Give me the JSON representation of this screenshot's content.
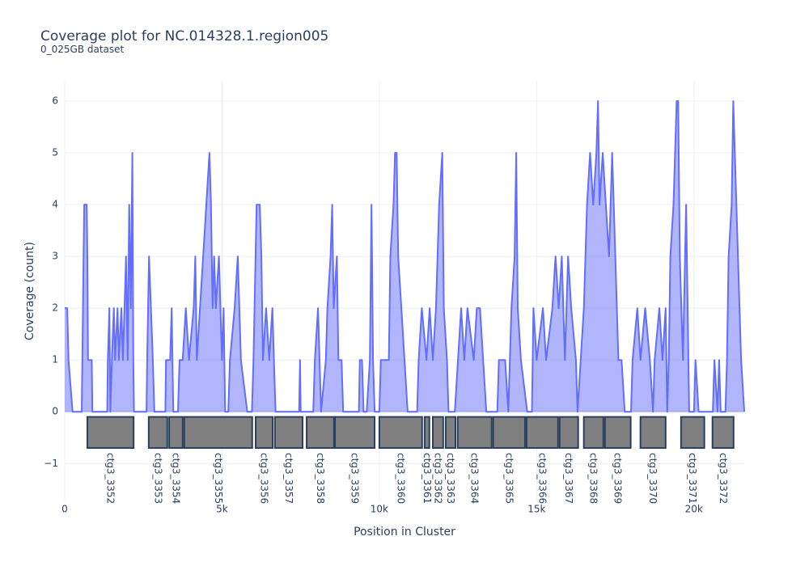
{
  "chart_data": {
    "type": "line",
    "title": "Coverage plot for NC.014328.1.region005",
    "subtitle": "0_025GB dataset",
    "x_label": "Position in Cluster",
    "y_label": "Coverage (count)",
    "xlim": [
      0,
      21600
    ],
    "ylim": [
      -1.73,
      6.39
    ],
    "xticks": [
      0,
      {
        "value": 5000,
        "label": "5k"
      },
      {
        "value": 10000,
        "label": "10k"
      },
      {
        "value": 15000,
        "label": "15k"
      },
      {
        "value": 20000,
        "label": "20k"
      }
    ],
    "yticks": [
      {
        "value": -1,
        "label": "−1"
      },
      0,
      1,
      2,
      3,
      4,
      5,
      6
    ],
    "grid": true,
    "coverage": {
      "color": "#636efa",
      "x": [
        0,
        80,
        120,
        250,
        540,
        560,
        600,
        620,
        700,
        720,
        740,
        860,
        880,
        1350,
        1370,
        1420,
        1450,
        1500,
        1560,
        1600,
        1680,
        1720,
        1800,
        1850,
        1900,
        1950,
        2000,
        2050,
        2100,
        2150,
        2180,
        2200,
        2600,
        2620,
        2680,
        2740,
        2800,
        2850,
        3200,
        3220,
        3350,
        3400,
        3450,
        3600,
        3650,
        3750,
        3850,
        3950,
        4100,
        4150,
        4200,
        4300,
        4400,
        4500,
        4600,
        4650,
        4700,
        4750,
        4800,
        4900,
        5000,
        5050,
        5100,
        5200,
        5250,
        5400,
        5500,
        5600,
        5800,
        5950,
        6000,
        6100,
        6200,
        6250,
        6300,
        6400,
        6500,
        6600,
        6650,
        6700,
        7450,
        7480,
        7500,
        7900,
        7950,
        8050,
        8100,
        8150,
        8300,
        8350,
        8450,
        8500,
        8550,
        8650,
        8700,
        8800,
        8850,
        9350,
        9380,
        9450,
        9500,
        9600,
        9700,
        9750,
        9800,
        9850,
        10000,
        10050,
        10300,
        10350,
        10450,
        10500,
        10550,
        10600,
        10700,
        10800,
        10900,
        11200,
        11250,
        11350,
        11500,
        11600,
        11700,
        11800,
        11900,
        12000,
        12050,
        12150,
        12200,
        12400,
        12500,
        12600,
        12700,
        12800,
        13000,
        13100,
        13200,
        13300,
        13400,
        13750,
        13800,
        14000,
        14100,
        14200,
        14300,
        14350,
        14400,
        14500,
        14700,
        14850,
        14900,
        15000,
        15200,
        15300,
        15500,
        15600,
        15700,
        15800,
        15900,
        16000,
        16100,
        16250,
        16300,
        16400,
        16500,
        16600,
        16700,
        16800,
        16900,
        16950,
        17000,
        17100,
        17200,
        17300,
        17400,
        17500,
        17600,
        17700,
        17800,
        18000,
        18050,
        18200,
        18300,
        18450,
        18600,
        18700,
        18750,
        18900,
        19000,
        19100,
        19150,
        19200,
        19250,
        19350,
        19450,
        19500,
        19550,
        19650,
        19750,
        19800,
        19850,
        20000,
        20050,
        20150,
        20600,
        20650,
        20750,
        20800,
        20850,
        21000,
        21050,
        21100,
        21200,
        21250,
        21300,
        21400,
        21500,
        21600
      ],
      "y": [
        2,
        2,
        1,
        0,
        0,
        1,
        3,
        4,
        4,
        3,
        1,
        1,
        0,
        0,
        1,
        2,
        0,
        1,
        2,
        1,
        2,
        1,
        2,
        1,
        2,
        3,
        1,
        4,
        2,
        5,
        1,
        0,
        0,
        1,
        3,
        2,
        1,
        0,
        0,
        1,
        1,
        2,
        0,
        0,
        1,
        1,
        2,
        1,
        2,
        3,
        1,
        2,
        3,
        4,
        5,
        4,
        2,
        3,
        2,
        3,
        1,
        2,
        0,
        0,
        1,
        2,
        3,
        1,
        0,
        0,
        1,
        4,
        4,
        3,
        1,
        2,
        1,
        2,
        1,
        0,
        0,
        1,
        0,
        0,
        1,
        2,
        1,
        0,
        1,
        2,
        3,
        4,
        2,
        3,
        1,
        1,
        0,
        0,
        1,
        1,
        0,
        0,
        1,
        4,
        1,
        0,
        0,
        1,
        1,
        3,
        4,
        5,
        5,
        3,
        2,
        1,
        0,
        0,
        1,
        2,
        1,
        2,
        1,
        2,
        4,
        5,
        2,
        1,
        0,
        0,
        1,
        2,
        1,
        2,
        1,
        2,
        2,
        1,
        0,
        0,
        1,
        1,
        0,
        2,
        3,
        5,
        2,
        1,
        0,
        0,
        2,
        1,
        2,
        1,
        2,
        3,
        2,
        3,
        1,
        3,
        2,
        1,
        0,
        1,
        2,
        4,
        5,
        4,
        5,
        6,
        4,
        5,
        4,
        3,
        5,
        3,
        1,
        1,
        0,
        0,
        1,
        2,
        1,
        2,
        1,
        0,
        1,
        2,
        1,
        2,
        0,
        1,
        3,
        4,
        6,
        6,
        3,
        1,
        4,
        2,
        0,
        0,
        1,
        0,
        0,
        1,
        0,
        1,
        0,
        0,
        1,
        3,
        4,
        6,
        5,
        3,
        1,
        0
      ]
    },
    "genes": [
      {
        "name": "ctg3_3352",
        "start": 720,
        "end": 2190
      },
      {
        "name": "ctg3_3353",
        "start": 2670,
        "end": 3260
      },
      {
        "name": "ctg3_3354",
        "start": 3320,
        "end": 3750
      },
      {
        "name": "ctg3_3355",
        "start": 3800,
        "end": 5960
      },
      {
        "name": "ctg3_3356",
        "start": 6070,
        "end": 6610
      },
      {
        "name": "ctg3_3357",
        "start": 6680,
        "end": 7560
      },
      {
        "name": "ctg3_3358",
        "start": 7690,
        "end": 8560
      },
      {
        "name": "ctg3_3359",
        "start": 8590,
        "end": 9850
      },
      {
        "name": "ctg3_3360",
        "start": 10000,
        "end": 11360
      },
      {
        "name": "ctg3_3361",
        "start": 11440,
        "end": 11590
      },
      {
        "name": "ctg3_3362",
        "start": 11700,
        "end": 12030
      },
      {
        "name": "ctg3_3363",
        "start": 12110,
        "end": 12420
      },
      {
        "name": "ctg3_3364",
        "start": 12490,
        "end": 13570
      },
      {
        "name": "ctg3_3365",
        "start": 13620,
        "end": 14630
      },
      {
        "name": "ctg3_3366",
        "start": 14680,
        "end": 15680
      },
      {
        "name": "ctg3_3367",
        "start": 15730,
        "end": 16320
      },
      {
        "name": "ctg3_3368",
        "start": 16500,
        "end": 17120
      },
      {
        "name": "ctg3_3369",
        "start": 17170,
        "end": 17990
      },
      {
        "name": "ctg3_3370",
        "start": 18300,
        "end": 19100
      },
      {
        "name": "ctg3_3371",
        "start": 19590,
        "end": 20330
      },
      {
        "name": "ctg3_3372",
        "start": 20590,
        "end": 21260
      }
    ]
  }
}
